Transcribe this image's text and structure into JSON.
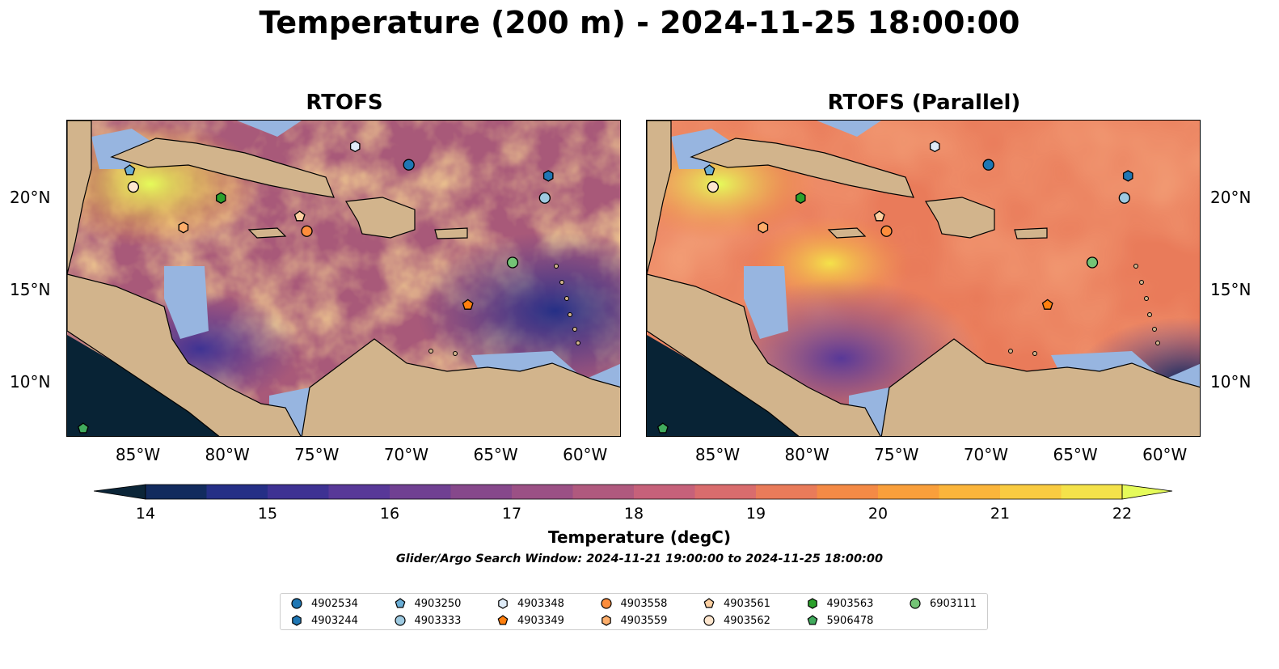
{
  "title": "Temperature (200 m) - 2024-11-25 18:00:00",
  "panels": [
    {
      "title": "RTOFS"
    },
    {
      "title": "RTOFS (Parallel)"
    }
  ],
  "map": {
    "type": "map",
    "lon_range": [
      -89,
      -58
    ],
    "lat_range": [
      7,
      24.2
    ],
    "lon_ticks": [
      "85°W",
      "80°W",
      "75°W",
      "70°W",
      "65°W",
      "60°W"
    ],
    "lat_ticks": [
      "20°N",
      "15°N",
      "10°N"
    ],
    "colors": {
      "land": "#d2b48c",
      "shallow": "#97b5e0",
      "deep": "#082335"
    }
  },
  "colorbar": {
    "label": "Temperature (degC)",
    "ticks": [
      "14",
      "15",
      "16",
      "17",
      "18",
      "19",
      "20",
      "21",
      "22"
    ],
    "range": [
      14,
      22
    ],
    "colors": [
      "#0b2538",
      "#122b5e",
      "#252f86",
      "#3e3293",
      "#583898",
      "#704092",
      "#86488b",
      "#9b5085",
      "#b0597e",
      "#c6617a",
      "#d96c6d",
      "#e97b5a",
      "#f48a46",
      "#f99f3b",
      "#fbb53b",
      "#f9cb41",
      "#f4e24a",
      "#e5fb5a"
    ]
  },
  "search_window": "Glider/Argo Search Window: 2024-11-21 19:00:00 to 2024-11-25 18:00:00",
  "legend": {
    "items": [
      {
        "label": "4902534",
        "marker": "circle",
        "color": "#1f77b4"
      },
      {
        "label": "4903244",
        "marker": "hexagon",
        "color": "#1f77b4"
      },
      {
        "label": "4903250",
        "marker": "pentagon",
        "color": "#6baed6"
      },
      {
        "label": "4903333",
        "marker": "circle",
        "color": "#9ecae1"
      },
      {
        "label": "4903348",
        "marker": "hexagon",
        "color": "#deebf7"
      },
      {
        "label": "4903349",
        "marker": "pentagon",
        "color": "#ff7f0e"
      },
      {
        "label": "4903558",
        "marker": "circle",
        "color": "#fd8d3c"
      },
      {
        "label": "4903559",
        "marker": "hexagon",
        "color": "#fdae6b"
      },
      {
        "label": "4903561",
        "marker": "pentagon",
        "color": "#fdd0a2"
      },
      {
        "label": "4903562",
        "marker": "circle",
        "color": "#fee6ce"
      },
      {
        "label": "4903563",
        "marker": "hexagon",
        "color": "#2ca02c"
      },
      {
        "label": "5906478",
        "marker": "pentagon",
        "color": "#41ab5d"
      },
      {
        "label": "6903111",
        "marker": "circle",
        "color": "#74c476"
      }
    ]
  },
  "floats": [
    {
      "id": "4902534",
      "lon": -69.9,
      "lat": 21.8
    },
    {
      "id": "4903244",
      "lon": -62.1,
      "lat": 21.2
    },
    {
      "id": "4903250",
      "lon": -85.5,
      "lat": 21.5
    },
    {
      "id": "4903333",
      "lon": -62.3,
      "lat": 20.0
    },
    {
      "id": "4903348",
      "lon": -72.9,
      "lat": 22.8
    },
    {
      "id": "4903349",
      "lon": -66.6,
      "lat": 14.2
    },
    {
      "id": "4903558",
      "lon": -75.6,
      "lat": 18.2
    },
    {
      "id": "4903559",
      "lon": -82.5,
      "lat": 18.4
    },
    {
      "id": "4903561",
      "lon": -76.0,
      "lat": 19.0
    },
    {
      "id": "4903562",
      "lon": -85.3,
      "lat": 20.6
    },
    {
      "id": "4903563",
      "lon": -80.4,
      "lat": 20.0
    },
    {
      "id": "5906478",
      "lon": -88.1,
      "lat": 7.5
    },
    {
      "id": "6903111",
      "lon": -64.1,
      "lat": 16.5
    }
  ]
}
